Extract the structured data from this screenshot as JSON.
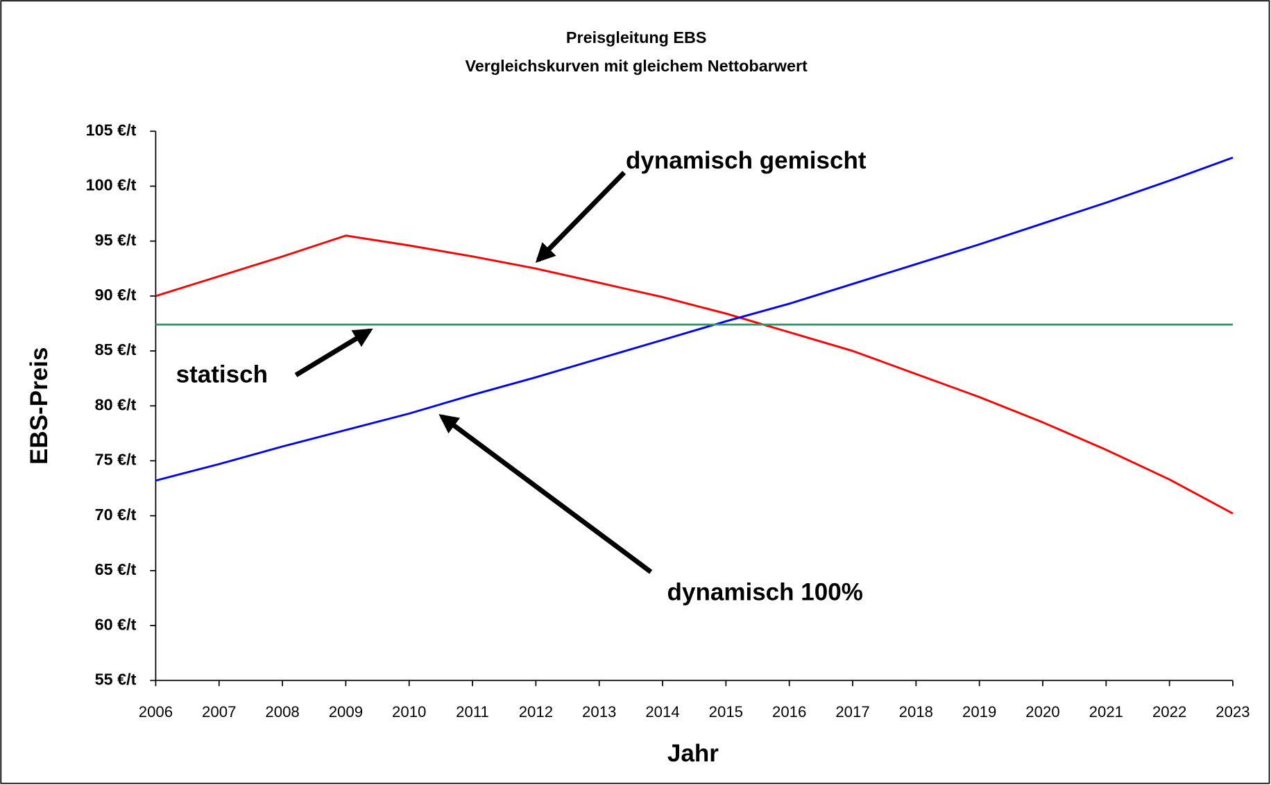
{
  "chart_data": {
    "type": "line",
    "title": "Preisgleitung EBS",
    "subtitle": "Vergleichskurven mit gleichem Nettobarwert",
    "x_label": "Jahr",
    "y_label": "EBS-Preis",
    "x": [
      2006,
      2007,
      2008,
      2009,
      2010,
      2011,
      2012,
      2013,
      2014,
      2015,
      2016,
      2017,
      2018,
      2019,
      2020,
      2021,
      2022,
      2023
    ],
    "series": [
      {
        "color": "#ff0000",
        "values": [
          90,
          91.8,
          93.6,
          95.5,
          94.6,
          93.6,
          92.5,
          91.2,
          89.9,
          88.4,
          86.7,
          85.0,
          82.9,
          80.8,
          78.5,
          76.0,
          73.3,
          70.2
        ]
      },
      {
        "color": "#0000ff",
        "values": [
          73.2,
          74.7,
          76.3,
          77.8,
          79.3,
          81.0,
          82.6,
          84.3,
          86.0,
          87.7,
          89.3,
          91.1,
          92.9,
          94.7,
          96.6,
          98.5,
          100.5,
          102.6
        ]
      },
      {
        "color": "#339966",
        "values": [
          87.4,
          87.4,
          87.4,
          87.4,
          87.4,
          87.4,
          87.4,
          87.4,
          87.4,
          87.4,
          87.4,
          87.4,
          87.4,
          87.4,
          87.4,
          87.4,
          87.4,
          87.4
        ]
      }
    ],
    "annotations": [
      "dynamisch gemischt",
      "statisch",
      "dynamisch 100%"
    ],
    "xlim": [
      2006,
      2023
    ],
    "xticks": [
      2006,
      2007,
      2008,
      2009,
      2010,
      2011,
      2012,
      2013,
      2014,
      2015,
      2016,
      2017,
      2018,
      2019,
      2020,
      2021,
      2022,
      2023
    ],
    "ylim": [
      55,
      105
    ],
    "yticks": [
      {
        "value": 55,
        "label": "55 €/t"
      },
      {
        "value": 60,
        "label": "60 €/t"
      },
      {
        "value": 65,
        "label": "65 €/t"
      },
      {
        "value": 70,
        "label": "70 €/t"
      },
      {
        "value": 75,
        "label": "75 €/t"
      },
      {
        "value": 80,
        "label": "80 €/t"
      },
      {
        "value": 85,
        "label": "85 €/t"
      },
      {
        "value": 90,
        "label": "90 €/t"
      },
      {
        "value": 95,
        "label": "95 €/t"
      },
      {
        "value": 100,
        "label": "100 €/t"
      },
      {
        "value": 105,
        "label": "105 €/t"
      }
    ],
    "grid": false
  }
}
